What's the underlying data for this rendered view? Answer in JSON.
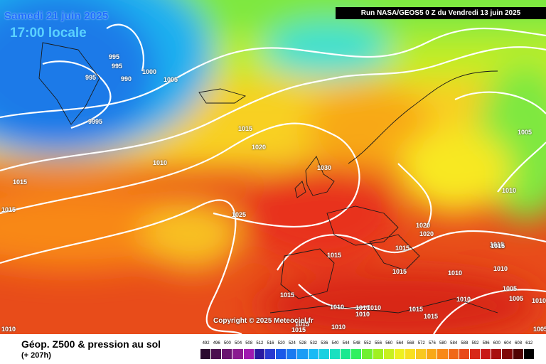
{
  "map": {
    "date": "Samedi 21 juin 2025",
    "local_time": "17:00 locale",
    "run_info": "Run NASA/GEOS5 0 Z du Vendredi 13 juin 2025",
    "copyright": "Copyright © 2025 Meteociel.fr",
    "isobar_labels": [
      {
        "text": "995"
      },
      {
        "text": "995"
      },
      {
        "text": "995"
      },
      {
        "text": "990"
      },
      {
        "text": "1000"
      },
      {
        "text": "1005"
      },
      {
        "text": "9995"
      },
      {
        "text": "1015"
      },
      {
        "text": "1020"
      },
      {
        "text": "1010"
      },
      {
        "text": "1030"
      },
      {
        "text": "1025"
      },
      {
        "text": "1015"
      },
      {
        "text": "1015"
      },
      {
        "text": "1005"
      },
      {
        "text": "1010"
      },
      {
        "text": "1020"
      },
      {
        "text": "1020"
      },
      {
        "text": "1015"
      },
      {
        "text": "1015"
      },
      {
        "text": "1015"
      },
      {
        "text": "1010"
      },
      {
        "text": "1010"
      },
      {
        "text": "1005"
      },
      {
        "text": "1005"
      },
      {
        "text": "1015"
      },
      {
        "text": "1010"
      },
      {
        "text": "1010"
      },
      {
        "text": "1015"
      },
      {
        "text": "1015"
      },
      {
        "text": "1015"
      },
      {
        "text": "1010"
      },
      {
        "text": "1010"
      },
      {
        "text": "1010"
      },
      {
        "text": "1010"
      },
      {
        "text": "1015"
      },
      {
        "text": "1015"
      },
      {
        "text": "1010"
      },
      {
        "text": "1015"
      },
      {
        "text": "1015"
      },
      {
        "text": "1010"
      },
      {
        "text": "1005"
      }
    ]
  },
  "footer": {
    "title": "Géop. Z500 & pression au sol",
    "lead_time": "(+ 207h)"
  },
  "scale": {
    "labels": [
      "492",
      "496",
      "500",
      "504",
      "508",
      "512",
      "516",
      "520",
      "524",
      "528",
      "532",
      "536",
      "540",
      "544",
      "548",
      "552",
      "556",
      "560",
      "564",
      "568",
      "572",
      "576",
      "580",
      "584",
      "588",
      "592",
      "596",
      "600",
      "604",
      "608",
      "612"
    ],
    "colors": [
      "#2a0a2e",
      "#4a0f4f",
      "#6a1470",
      "#8a1a90",
      "#a01ab0",
      "#2a1aa0",
      "#2a3ad0",
      "#1a5ae8",
      "#1a7af0",
      "#1a9cf5",
      "#1abaf5",
      "#1ad0e0",
      "#1ae0c0",
      "#1ae890",
      "#30f060",
      "#70f030",
      "#a0f020",
      "#c8f020",
      "#eef020",
      "#f8e020",
      "#f8c820",
      "#f8a818",
      "#f88818",
      "#f06818",
      "#e84818",
      "#d82818",
      "#c81818",
      "#a81010",
      "#800808",
      "#500404",
      "#000000"
    ]
  }
}
